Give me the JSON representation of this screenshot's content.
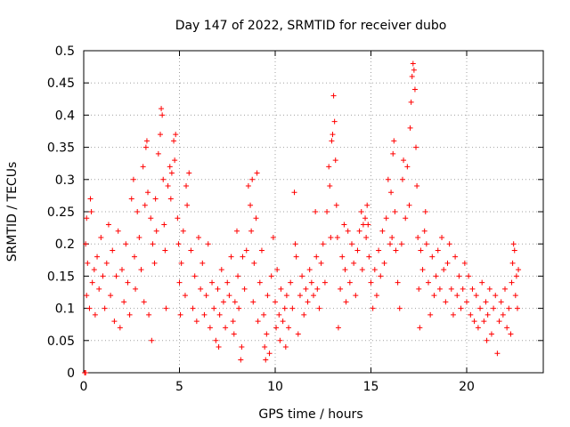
{
  "chart_data": {
    "type": "scatter",
    "title": "Day 147 of 2022, SRMTID for receiver dubo",
    "xlabel": "GPS time / hours",
    "ylabel": "SRMTID / TECUs",
    "xlim": [
      0,
      24
    ],
    "ylim": [
      0,
      0.5
    ],
    "xticks": [
      0,
      5,
      10,
      15,
      20
    ],
    "yticks": [
      0,
      0.05,
      0.1,
      0.15,
      0.2,
      0.25,
      0.3,
      0.35,
      0.4,
      0.45,
      0.5
    ],
    "xtick_labels": [
      "0",
      "5",
      "10",
      "15",
      "20"
    ],
    "ytick_labels": [
      "0",
      "0.05",
      "0.1",
      "0.15",
      "0.2",
      "0.25",
      "0.3",
      "0.35",
      "0.4",
      "0.45",
      "0.5"
    ],
    "grid": true,
    "marker": "+",
    "series": [
      {
        "name": "SRMTID",
        "color": "#ff0000",
        "points": [
          [
            0.05,
            0.0
          ],
          [
            0.1,
            0.0
          ],
          [
            0.1,
            0.2
          ],
          [
            0.15,
            0.24
          ],
          [
            0.15,
            0.12
          ],
          [
            0.2,
            0.17
          ],
          [
            0.3,
            0.1
          ],
          [
            0.35,
            0.27
          ],
          [
            0.4,
            0.25
          ],
          [
            0.45,
            0.14
          ],
          [
            0.55,
            0.16
          ],
          [
            0.6,
            0.09
          ],
          [
            0.7,
            0.18
          ],
          [
            0.8,
            0.13
          ],
          [
            0.9,
            0.21
          ],
          [
            1.0,
            0.15
          ],
          [
            1.1,
            0.1
          ],
          [
            1.2,
            0.17
          ],
          [
            1.3,
            0.23
          ],
          [
            1.4,
            0.12
          ],
          [
            1.5,
            0.19
          ],
          [
            1.6,
            0.08
          ],
          [
            1.7,
            0.15
          ],
          [
            1.8,
            0.22
          ],
          [
            1.9,
            0.07
          ],
          [
            2.0,
            0.16
          ],
          [
            2.1,
            0.11
          ],
          [
            2.2,
            0.2
          ],
          [
            2.3,
            0.14
          ],
          [
            2.4,
            0.09
          ],
          [
            2.5,
            0.27
          ],
          [
            2.6,
            0.3
          ],
          [
            2.65,
            0.18
          ],
          [
            2.7,
            0.13
          ],
          [
            2.8,
            0.25
          ],
          [
            2.9,
            0.21
          ],
          [
            3.0,
            0.16
          ],
          [
            3.1,
            0.32
          ],
          [
            3.15,
            0.11
          ],
          [
            3.2,
            0.26
          ],
          [
            3.25,
            0.35
          ],
          [
            3.3,
            0.36
          ],
          [
            3.35,
            0.28
          ],
          [
            3.4,
            0.09
          ],
          [
            3.5,
            0.24
          ],
          [
            3.55,
            0.05
          ],
          [
            3.6,
            0.2
          ],
          [
            3.7,
            0.17
          ],
          [
            3.75,
            0.27
          ],
          [
            3.8,
            0.22
          ],
          [
            3.9,
            0.34
          ],
          [
            4.0,
            0.37
          ],
          [
            4.05,
            0.41
          ],
          [
            4.1,
            0.4
          ],
          [
            4.15,
            0.3
          ],
          [
            4.2,
            0.23
          ],
          [
            4.25,
            0.19
          ],
          [
            4.3,
            0.1
          ],
          [
            4.4,
            0.29
          ],
          [
            4.5,
            0.32
          ],
          [
            4.55,
            0.27
          ],
          [
            4.6,
            0.31
          ],
          [
            4.7,
            0.36
          ],
          [
            4.75,
            0.33
          ],
          [
            4.8,
            0.37
          ],
          [
            4.9,
            0.24
          ],
          [
            4.95,
            0.2
          ],
          [
            5.0,
            0.14
          ],
          [
            5.05,
            0.09
          ],
          [
            5.1,
            0.17
          ],
          [
            5.2,
            0.22
          ],
          [
            5.3,
            0.12
          ],
          [
            5.35,
            0.29
          ],
          [
            5.4,
            0.26
          ],
          [
            5.5,
            0.31
          ],
          [
            5.6,
            0.19
          ],
          [
            5.7,
            0.1
          ],
          [
            5.8,
            0.15
          ],
          [
            5.9,
            0.08
          ],
          [
            6.0,
            0.21
          ],
          [
            6.1,
            0.13
          ],
          [
            6.2,
            0.17
          ],
          [
            6.3,
            0.09
          ],
          [
            6.4,
            0.12
          ],
          [
            6.5,
            0.2
          ],
          [
            6.6,
            0.07
          ],
          [
            6.7,
            0.14
          ],
          [
            6.8,
            0.1
          ],
          [
            6.9,
            0.05
          ],
          [
            7.0,
            0.13
          ],
          [
            7.05,
            0.04
          ],
          [
            7.1,
            0.09
          ],
          [
            7.2,
            0.16
          ],
          [
            7.3,
            0.11
          ],
          [
            7.4,
            0.07
          ],
          [
            7.5,
            0.14
          ],
          [
            7.6,
            0.12
          ],
          [
            7.7,
            0.18
          ],
          [
            7.8,
            0.08
          ],
          [
            7.85,
            0.06
          ],
          [
            7.9,
            0.11
          ],
          [
            8.0,
            0.22
          ],
          [
            8.05,
            0.15
          ],
          [
            8.1,
            0.1
          ],
          [
            8.2,
            0.02
          ],
          [
            8.25,
            0.04
          ],
          [
            8.3,
            0.18
          ],
          [
            8.4,
            0.13
          ],
          [
            8.5,
            0.19
          ],
          [
            8.6,
            0.29
          ],
          [
            8.7,
            0.26
          ],
          [
            8.75,
            0.22
          ],
          [
            8.8,
            0.3
          ],
          [
            8.85,
            0.11
          ],
          [
            8.9,
            0.17
          ],
          [
            9.0,
            0.24
          ],
          [
            9.05,
            0.31
          ],
          [
            9.1,
            0.08
          ],
          [
            9.2,
            0.14
          ],
          [
            9.3,
            0.19
          ],
          [
            9.4,
            0.09
          ],
          [
            9.45,
            0.04
          ],
          [
            9.5,
            0.02
          ],
          [
            9.55,
            0.06
          ],
          [
            9.6,
            0.12
          ],
          [
            9.7,
            0.03
          ],
          [
            9.8,
            0.15
          ],
          [
            9.9,
            0.21
          ],
          [
            10.0,
            0.11
          ],
          [
            10.05,
            0.07
          ],
          [
            10.1,
            0.16
          ],
          [
            10.2,
            0.09
          ],
          [
            10.25,
            0.05
          ],
          [
            10.3,
            0.13
          ],
          [
            10.4,
            0.08
          ],
          [
            10.5,
            0.1
          ],
          [
            10.55,
            0.04
          ],
          [
            10.6,
            0.12
          ],
          [
            10.7,
            0.07
          ],
          [
            10.8,
            0.14
          ],
          [
            10.9,
            0.1
          ],
          [
            11.0,
            0.28
          ],
          [
            11.05,
            0.2
          ],
          [
            11.1,
            0.18
          ],
          [
            11.2,
            0.06
          ],
          [
            11.3,
            0.12
          ],
          [
            11.4,
            0.15
          ],
          [
            11.5,
            0.09
          ],
          [
            11.6,
            0.13
          ],
          [
            11.7,
            0.11
          ],
          [
            11.8,
            0.16
          ],
          [
            11.9,
            0.14
          ],
          [
            12.0,
            0.12
          ],
          [
            12.1,
            0.25
          ],
          [
            12.15,
            0.18
          ],
          [
            12.2,
            0.13
          ],
          [
            12.3,
            0.1
          ],
          [
            12.4,
            0.17
          ],
          [
            12.5,
            0.2
          ],
          [
            12.6,
            0.14
          ],
          [
            12.7,
            0.25
          ],
          [
            12.8,
            0.32
          ],
          [
            12.85,
            0.29
          ],
          [
            12.9,
            0.21
          ],
          [
            12.95,
            0.36
          ],
          [
            13.0,
            0.37
          ],
          [
            13.05,
            0.43
          ],
          [
            13.1,
            0.39
          ],
          [
            13.15,
            0.33
          ],
          [
            13.2,
            0.26
          ],
          [
            13.25,
            0.21
          ],
          [
            13.3,
            0.07
          ],
          [
            13.4,
            0.13
          ],
          [
            13.5,
            0.18
          ],
          [
            13.6,
            0.23
          ],
          [
            13.65,
            0.16
          ],
          [
            13.7,
            0.11
          ],
          [
            13.8,
            0.22
          ],
          [
            13.9,
            0.14
          ],
          [
            14.0,
            0.2
          ],
          [
            14.1,
            0.17
          ],
          [
            14.2,
            0.12
          ],
          [
            14.3,
            0.19
          ],
          [
            14.4,
            0.22
          ],
          [
            14.5,
            0.25
          ],
          [
            14.55,
            0.16
          ],
          [
            14.6,
            0.23
          ],
          [
            14.7,
            0.24
          ],
          [
            14.75,
            0.21
          ],
          [
            14.8,
            0.26
          ],
          [
            14.85,
            0.23
          ],
          [
            14.9,
            0.18
          ],
          [
            15.0,
            0.14
          ],
          [
            15.1,
            0.1
          ],
          [
            15.2,
            0.16
          ],
          [
            15.3,
            0.12
          ],
          [
            15.4,
            0.19
          ],
          [
            15.5,
            0.15
          ],
          [
            15.6,
            0.22
          ],
          [
            15.7,
            0.17
          ],
          [
            15.8,
            0.24
          ],
          [
            15.9,
            0.3
          ],
          [
            16.0,
            0.2
          ],
          [
            16.05,
            0.28
          ],
          [
            16.1,
            0.21
          ],
          [
            16.15,
            0.34
          ],
          [
            16.2,
            0.36
          ],
          [
            16.25,
            0.25
          ],
          [
            16.3,
            0.19
          ],
          [
            16.4,
            0.14
          ],
          [
            16.5,
            0.1
          ],
          [
            16.6,
            0.2
          ],
          [
            16.65,
            0.3
          ],
          [
            16.7,
            0.33
          ],
          [
            16.8,
            0.24
          ],
          [
            16.9,
            0.32
          ],
          [
            17.0,
            0.26
          ],
          [
            17.05,
            0.38
          ],
          [
            17.1,
            0.42
          ],
          [
            17.15,
            0.46
          ],
          [
            17.2,
            0.48
          ],
          [
            17.25,
            0.47
          ],
          [
            17.3,
            0.44
          ],
          [
            17.35,
            0.35
          ],
          [
            17.4,
            0.29
          ],
          [
            17.45,
            0.21
          ],
          [
            17.5,
            0.13
          ],
          [
            17.55,
            0.07
          ],
          [
            17.6,
            0.19
          ],
          [
            17.7,
            0.16
          ],
          [
            17.8,
            0.22
          ],
          [
            17.85,
            0.25
          ],
          [
            17.9,
            0.2
          ],
          [
            18.0,
            0.14
          ],
          [
            18.1,
            0.09
          ],
          [
            18.2,
            0.18
          ],
          [
            18.3,
            0.12
          ],
          [
            18.4,
            0.15
          ],
          [
            18.5,
            0.19
          ],
          [
            18.6,
            0.13
          ],
          [
            18.7,
            0.21
          ],
          [
            18.8,
            0.16
          ],
          [
            18.9,
            0.11
          ],
          [
            19.0,
            0.17
          ],
          [
            19.1,
            0.2
          ],
          [
            19.2,
            0.13
          ],
          [
            19.3,
            0.09
          ],
          [
            19.4,
            0.18
          ],
          [
            19.5,
            0.12
          ],
          [
            19.6,
            0.15
          ],
          [
            19.7,
            0.1
          ],
          [
            19.8,
            0.13
          ],
          [
            19.9,
            0.17
          ],
          [
            20.0,
            0.11
          ],
          [
            20.1,
            0.15
          ],
          [
            20.2,
            0.09
          ],
          [
            20.3,
            0.13
          ],
          [
            20.4,
            0.08
          ],
          [
            20.5,
            0.12
          ],
          [
            20.6,
            0.07
          ],
          [
            20.7,
            0.1
          ],
          [
            20.8,
            0.14
          ],
          [
            20.9,
            0.08
          ],
          [
            21.0,
            0.11
          ],
          [
            21.05,
            0.05
          ],
          [
            21.1,
            0.09
          ],
          [
            21.2,
            0.13
          ],
          [
            21.3,
            0.06
          ],
          [
            21.4,
            0.1
          ],
          [
            21.5,
            0.12
          ],
          [
            21.6,
            0.03
          ],
          [
            21.7,
            0.08
          ],
          [
            21.8,
            0.11
          ],
          [
            21.9,
            0.09
          ],
          [
            22.0,
            0.13
          ],
          [
            22.1,
            0.07
          ],
          [
            22.2,
            0.1
          ],
          [
            22.3,
            0.06
          ],
          [
            22.35,
            0.14
          ],
          [
            22.4,
            0.17
          ],
          [
            22.45,
            0.2
          ],
          [
            22.5,
            0.19
          ],
          [
            22.55,
            0.12
          ],
          [
            22.6,
            0.15
          ],
          [
            22.65,
            0.1
          ],
          [
            22.7,
            0.16
          ]
        ]
      }
    ]
  }
}
